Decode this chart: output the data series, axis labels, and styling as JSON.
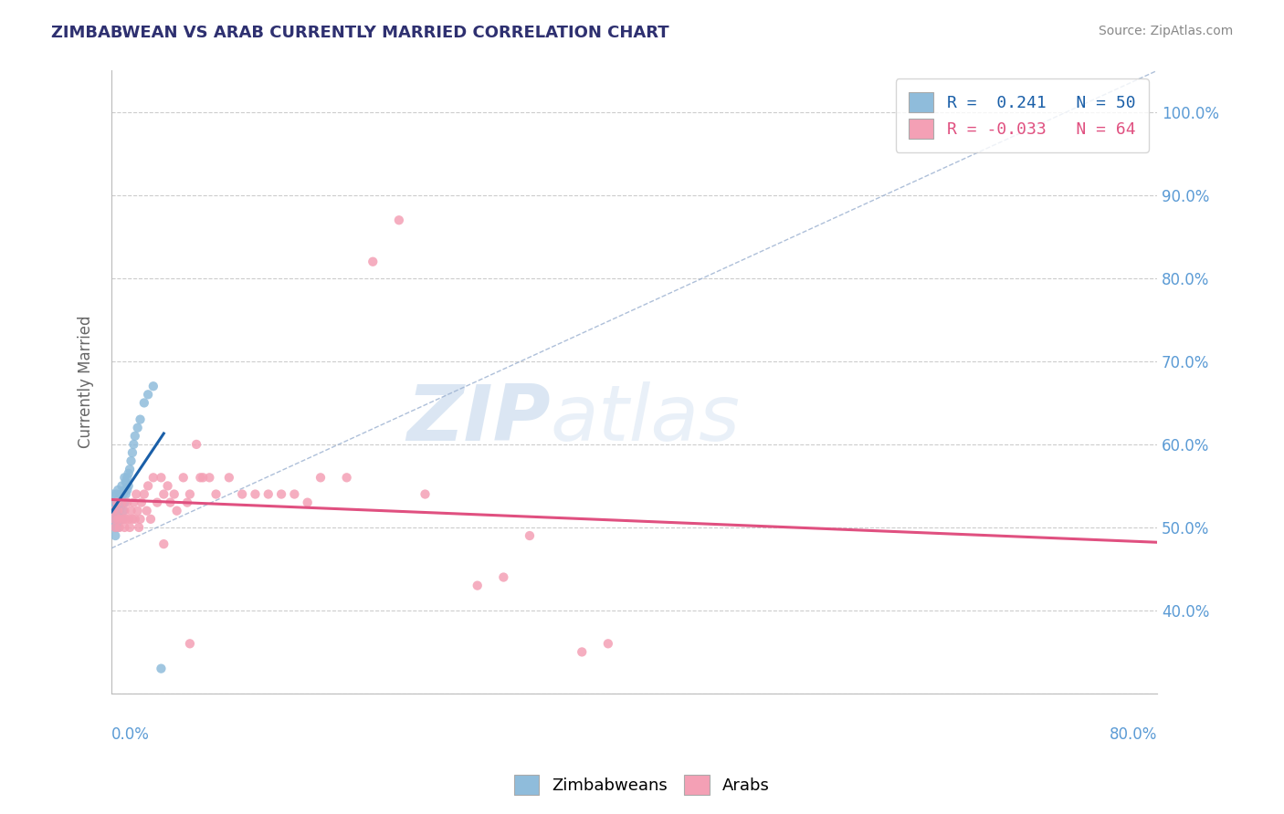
{
  "title": "ZIMBABWEAN VS ARAB CURRENTLY MARRIED CORRELATION CHART",
  "source": "Source: ZipAtlas.com",
  "ylabel": "Currently Married",
  "xlim": [
    0.0,
    0.8
  ],
  "ylim": [
    0.3,
    1.05
  ],
  "y_ticks": [
    0.4,
    0.5,
    0.6,
    0.7,
    0.8,
    0.9,
    1.0
  ],
  "y_tick_labels": [
    "40.0%",
    "50.0%",
    "60.0%",
    "70.0%",
    "80.0%",
    "90.0%",
    "100.0%"
  ],
  "zimbabwean_color": "#8fbcdb",
  "arab_color": "#f4a0b5",
  "zimbabwean_line_color": "#1a5fa8",
  "arab_line_color": "#e05080",
  "zimbabwean_R": 0.241,
  "zimbabwean_N": 50,
  "arab_R": -0.033,
  "arab_N": 64,
  "background_color": "#ffffff",
  "grid_color": "#cccccc",
  "title_color": "#2e3070",
  "axis_label_color": "#5b9bd5",
  "zimbabwean_scatter_x": [
    0.001,
    0.001,
    0.001,
    0.001,
    0.002,
    0.002,
    0.002,
    0.002,
    0.003,
    0.003,
    0.003,
    0.004,
    0.004,
    0.004,
    0.004,
    0.005,
    0.005,
    0.005,
    0.005,
    0.006,
    0.006,
    0.006,
    0.007,
    0.007,
    0.007,
    0.008,
    0.008,
    0.008,
    0.009,
    0.009,
    0.01,
    0.01,
    0.01,
    0.011,
    0.011,
    0.012,
    0.012,
    0.013,
    0.013,
    0.014,
    0.015,
    0.016,
    0.017,
    0.018,
    0.02,
    0.022,
    0.025,
    0.028,
    0.032,
    0.038
  ],
  "zimbabwean_scatter_y": [
    0.52,
    0.51,
    0.53,
    0.54,
    0.5,
    0.52,
    0.51,
    0.53,
    0.49,
    0.51,
    0.52,
    0.5,
    0.51,
    0.52,
    0.54,
    0.5,
    0.51,
    0.53,
    0.545,
    0.51,
    0.52,
    0.535,
    0.51,
    0.525,
    0.54,
    0.51,
    0.53,
    0.55,
    0.52,
    0.54,
    0.53,
    0.545,
    0.56,
    0.54,
    0.555,
    0.545,
    0.56,
    0.55,
    0.565,
    0.57,
    0.58,
    0.59,
    0.6,
    0.61,
    0.62,
    0.63,
    0.65,
    0.66,
    0.67,
    0.33
  ],
  "arab_scatter_x": [
    0.001,
    0.002,
    0.003,
    0.004,
    0.005,
    0.005,
    0.006,
    0.007,
    0.008,
    0.009,
    0.01,
    0.01,
    0.011,
    0.012,
    0.013,
    0.014,
    0.015,
    0.016,
    0.017,
    0.018,
    0.019,
    0.02,
    0.021,
    0.022,
    0.023,
    0.025,
    0.027,
    0.028,
    0.03,
    0.032,
    0.035,
    0.038,
    0.04,
    0.043,
    0.045,
    0.048,
    0.05,
    0.055,
    0.058,
    0.06,
    0.065,
    0.068,
    0.07,
    0.075,
    0.08,
    0.09,
    0.1,
    0.11,
    0.12,
    0.13,
    0.14,
    0.15,
    0.16,
    0.18,
    0.2,
    0.22,
    0.24,
    0.28,
    0.32,
    0.36,
    0.38,
    0.3,
    0.04,
    0.06
  ],
  "arab_scatter_y": [
    0.52,
    0.51,
    0.5,
    0.53,
    0.51,
    0.52,
    0.5,
    0.51,
    0.53,
    0.51,
    0.5,
    0.52,
    0.51,
    0.53,
    0.51,
    0.5,
    0.52,
    0.51,
    0.53,
    0.51,
    0.54,
    0.52,
    0.5,
    0.51,
    0.53,
    0.54,
    0.52,
    0.55,
    0.51,
    0.56,
    0.53,
    0.56,
    0.54,
    0.55,
    0.53,
    0.54,
    0.52,
    0.56,
    0.53,
    0.54,
    0.6,
    0.56,
    0.56,
    0.56,
    0.54,
    0.56,
    0.54,
    0.54,
    0.54,
    0.54,
    0.54,
    0.53,
    0.56,
    0.56,
    0.82,
    0.87,
    0.54,
    0.43,
    0.49,
    0.35,
    0.36,
    0.44,
    0.48,
    0.36
  ],
  "diag_line_x": [
    0.0,
    0.8
  ],
  "diag_line_y": [
    0.475,
    1.05
  ]
}
